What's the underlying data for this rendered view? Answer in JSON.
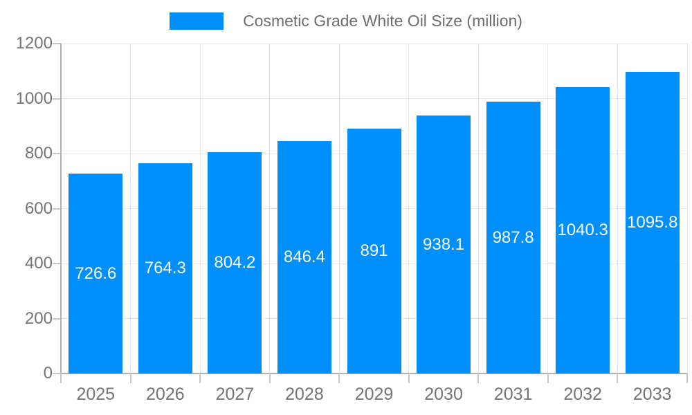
{
  "legend": {
    "label": "Cosmetic Grade White Oil Size (million)"
  },
  "colors": {
    "bar": "#008FFB",
    "grid": "#e6e6e6",
    "axis_line": "#b0b0b0",
    "tick": "#c6c6c6",
    "axis_text": "#757575",
    "legend_text": "#6e6e6e",
    "bar_label_text": "#ffffff",
    "background": "#ffffff"
  },
  "chart_data": {
    "type": "bar",
    "title": "Cosmetic Grade White Oil Size (million)",
    "categories": [
      "2025",
      "2026",
      "2027",
      "2028",
      "2029",
      "2030",
      "2031",
      "2032",
      "2033"
    ],
    "values": [
      726.6,
      764.3,
      804.2,
      846.4,
      891,
      938.1,
      987.8,
      1040.3,
      1095.8
    ],
    "xlabel": "",
    "ylabel": "",
    "ylim": [
      0,
      1200
    ],
    "ytick_interval": 200,
    "ytick_labels": [
      "0",
      "200",
      "400",
      "600",
      "800",
      "1000",
      "1200"
    ],
    "grid": true,
    "legend_position": "top",
    "bar_value_labels_inside": true
  }
}
